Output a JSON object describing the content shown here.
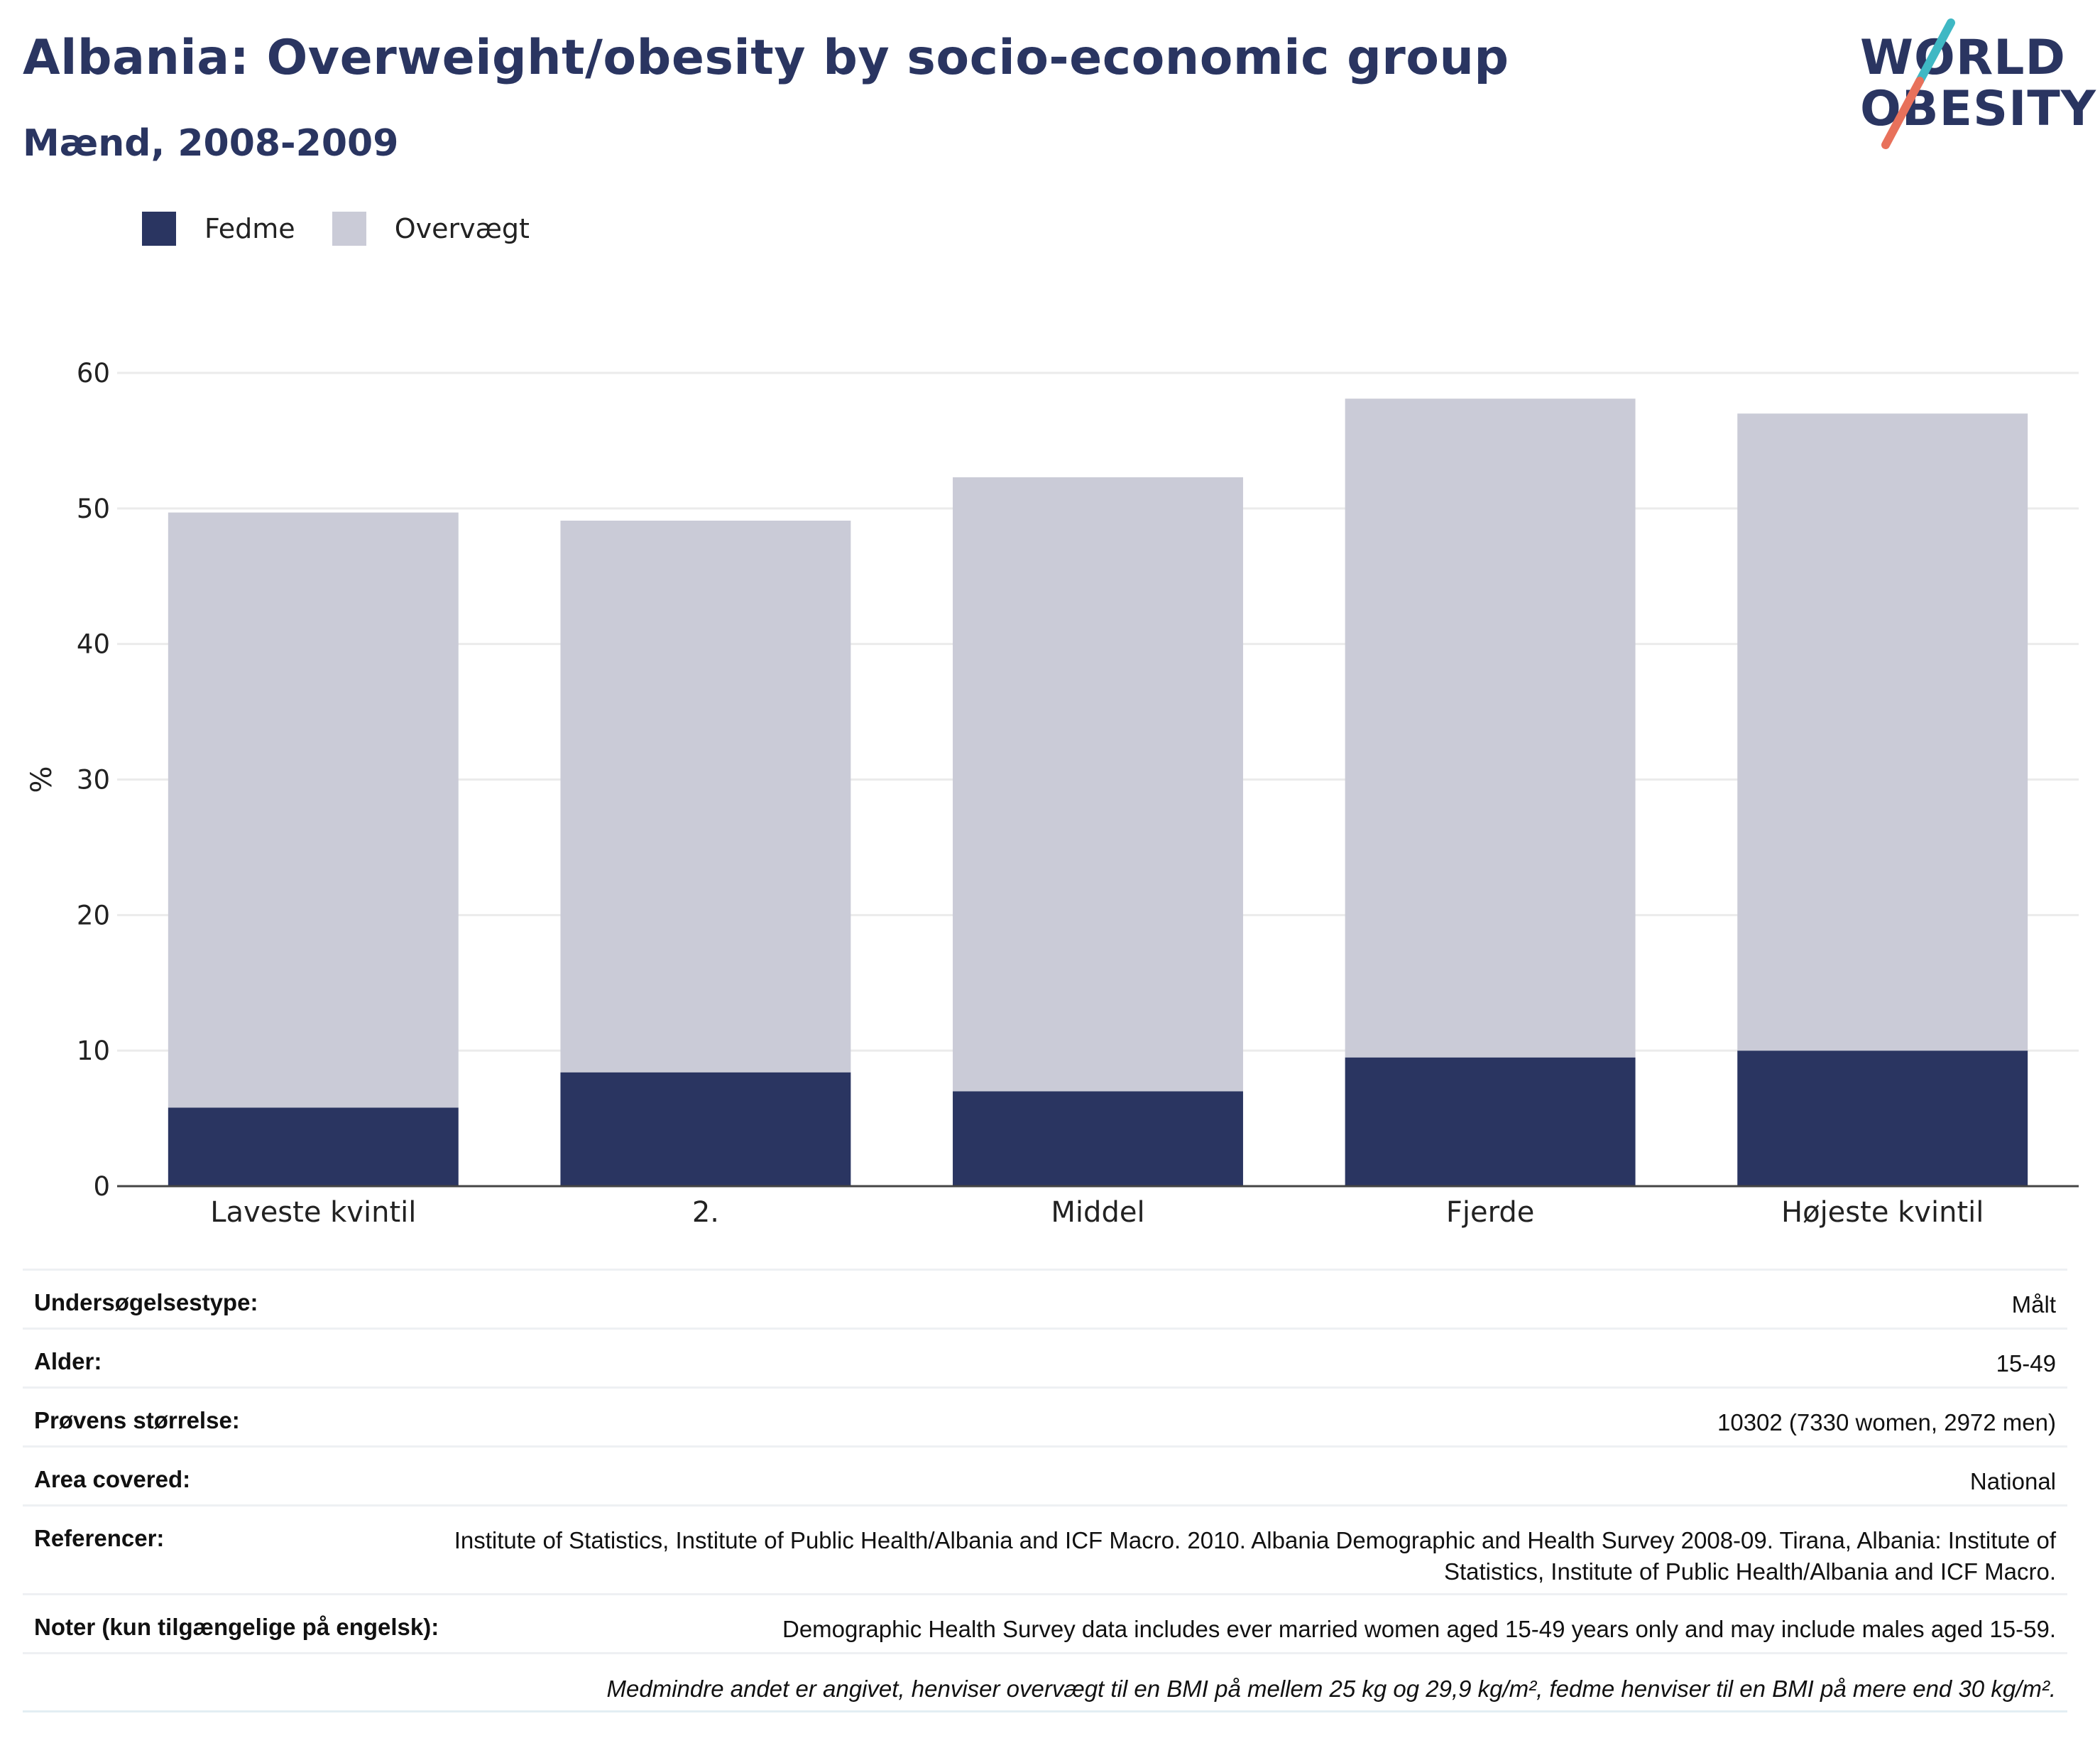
{
  "header": {
    "title": "Albania: Overweight/obesity by socio-economic group",
    "subtitle": "Mænd, 2008-2009"
  },
  "logo": {
    "line1": "WORLD",
    "line2": "OBESITY",
    "slash_colors": [
      "#3fb8c4",
      "#e8715b"
    ]
  },
  "legend": [
    {
      "label": "Fedme",
      "color": "#2a3561"
    },
    {
      "label": "Overvægt",
      "color": "#cacbd7"
    }
  ],
  "chart_data": {
    "type": "bar",
    "stacked": true,
    "categories": [
      "Laveste kvintil",
      "2.",
      "Middel",
      "Fjerde",
      "Højeste kvintil"
    ],
    "series": [
      {
        "name": "Fedme",
        "color": "#2a3561",
        "values": [
          5.8,
          8.4,
          7.0,
          9.5,
          10.0
        ]
      },
      {
        "name": "Overvægt",
        "color": "#cacbd7",
        "values": [
          43.9,
          40.7,
          45.3,
          48.6,
          47.0
        ]
      }
    ],
    "ylabel": "%",
    "xlabel": "",
    "ylim": [
      0,
      60
    ],
    "yticks": [
      0,
      10,
      20,
      30,
      40,
      50,
      60
    ],
    "grid": true
  },
  "info": {
    "rows": [
      {
        "key": "Undersøgelsestype:",
        "value": "Målt"
      },
      {
        "key": "Alder:",
        "value": "15-49"
      },
      {
        "key": "Prøvens størrelse:",
        "value": "10302 (7330 women, 2972 men)"
      },
      {
        "key": "Area covered:",
        "value": "National"
      },
      {
        "key": "Referencer:",
        "value": "Institute of Statistics, Institute of Public Health/Albania and ICF Macro. 2010. Albania Demographic and Health Survey 2008-09. Tirana, Albania: Institute of Statistics, Institute of Public Health/Albania and ICF Macro."
      },
      {
        "key": "Noter (kun tilgængelige på engelsk):",
        "value": "Demographic Health Survey data includes ever married women aged 15-49 years only and may include males aged 15-59."
      }
    ],
    "footnote": "Medmindre andet er angivet, henviser overvægt til en BMI på mellem 25 kg og 29,9 kg/m², fedme henviser til en BMI på mere end 30 kg/m²."
  }
}
